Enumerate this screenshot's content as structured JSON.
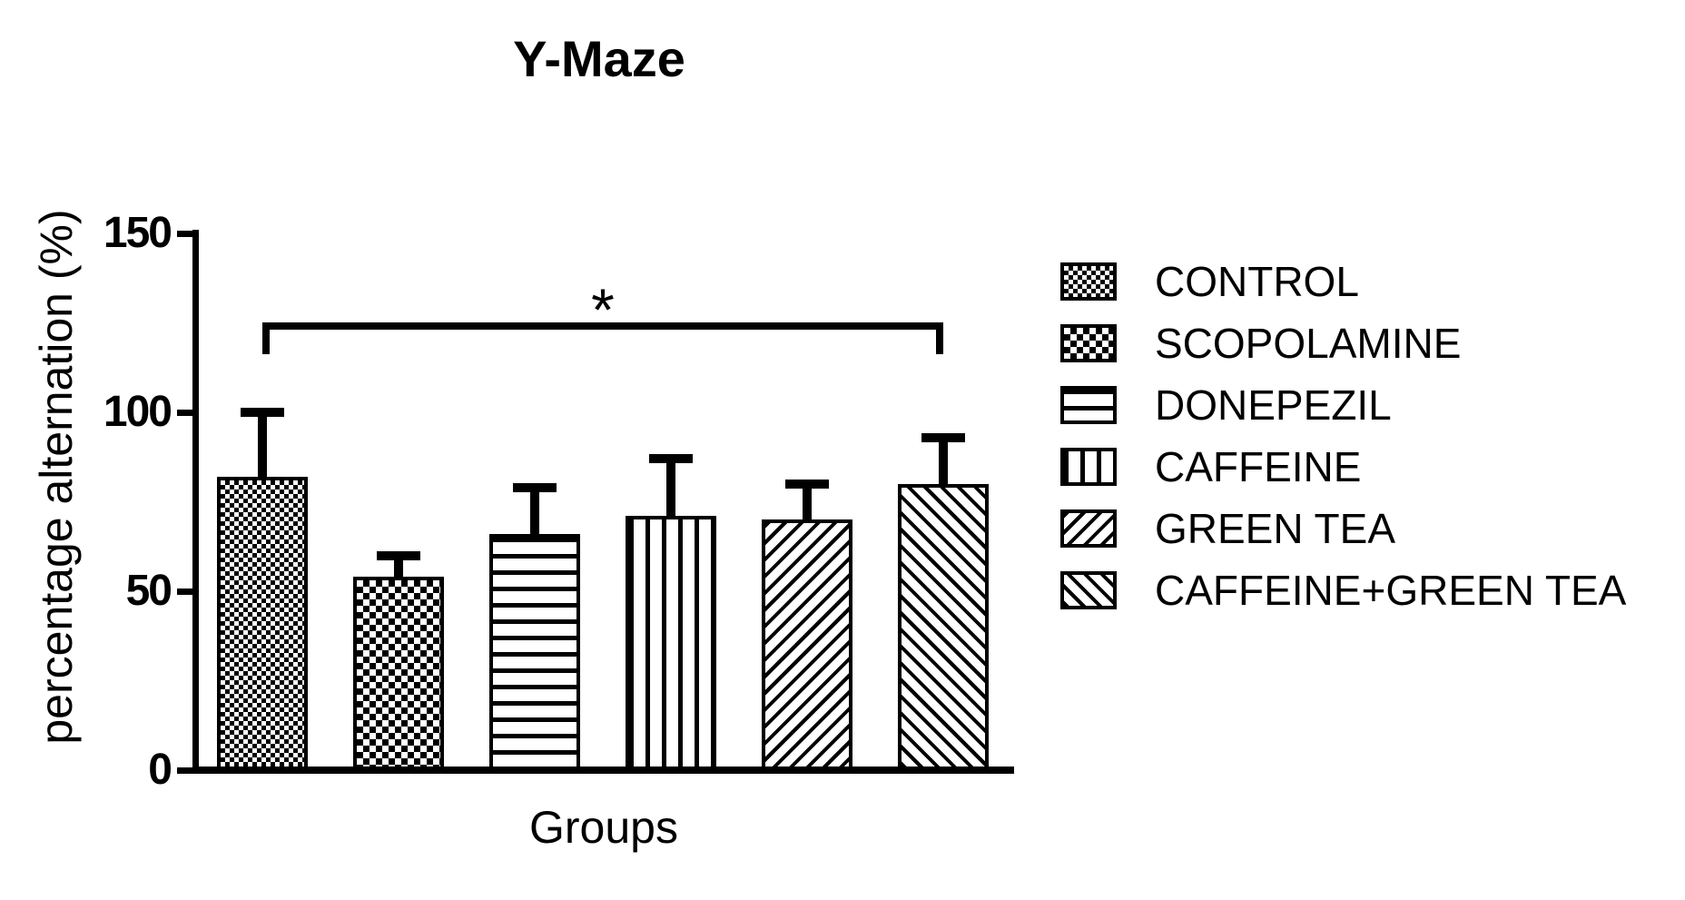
{
  "figure": {
    "title": "Y-Maze",
    "y_axis_label": "percentage alternation (%)",
    "x_axis_label": "Groups"
  },
  "colors": {
    "ink": "#000000",
    "background": "#ffffff"
  },
  "chart_data": {
    "type": "bar",
    "title": "Y-Maze",
    "xlabel": "Groups",
    "ylabel": "percentage alternation (%)",
    "ylim": [
      0,
      150
    ],
    "yticks": [
      0,
      50,
      100,
      150
    ],
    "ytick_labels": [
      "0",
      "50",
      "100",
      "150"
    ],
    "grid": false,
    "fill": "white bars with black hatch patterns, black outline",
    "categories": [
      "CONTROL",
      "SCOPOLAMINE",
      "DONEPEZIL",
      "CAFFEINE",
      "GREEN TEA",
      "CAFFEINE+GREEN TEA"
    ],
    "values": [
      82,
      54,
      66,
      71,
      70,
      80
    ],
    "error_bars": {
      "direction": "upper only",
      "tops": [
        100,
        60,
        79,
        87,
        80,
        93
      ],
      "magnitudes": [
        18,
        6,
        13,
        16,
        10,
        13
      ]
    },
    "patterns": [
      "checker-fine",
      "checker-coarse",
      "horizontal-lines",
      "vertical-lines",
      "diagonal-forward",
      "diagonal-backward"
    ],
    "significance": {
      "label": "*",
      "from_category": "CONTROL",
      "to_category": "CAFFEINE+GREEN TEA",
      "from_index": 0,
      "to_index": 5
    },
    "legend": {
      "position": "right",
      "entries": [
        {
          "label": "CONTROL",
          "pattern": "checker-fine"
        },
        {
          "label": "SCOPOLAMINE",
          "pattern": "checker-coarse"
        },
        {
          "label": "DONEPEZIL",
          "pattern": "horizontal-lines"
        },
        {
          "label": "CAFFEINE",
          "pattern": "vertical-lines"
        },
        {
          "label": "GREEN TEA",
          "pattern": "diagonal-forward"
        },
        {
          "label": "CAFFEINE+GREEN TEA",
          "pattern": "diagonal-backward"
        }
      ]
    }
  }
}
